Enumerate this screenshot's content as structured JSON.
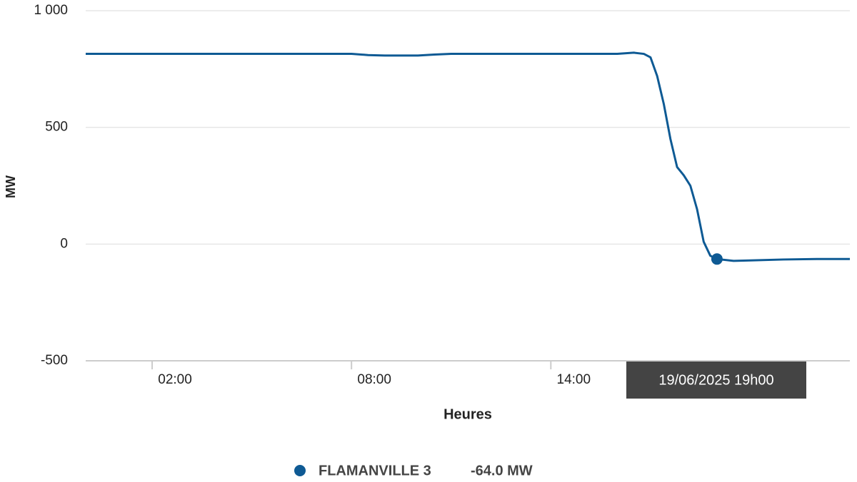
{
  "chart_data": {
    "type": "line",
    "y_label": "MW",
    "x_label": "Heures",
    "x": [
      0,
      1,
      2,
      3,
      4,
      5,
      6,
      7,
      8,
      8.5,
      9,
      10,
      10.5,
      11,
      12,
      13,
      14,
      15,
      16,
      16.5,
      16.8,
      17,
      17.2,
      17.4,
      17.6,
      17.8,
      18,
      18.2,
      18.4,
      18.6,
      18.8,
      19,
      19.5,
      20,
      21,
      22,
      23
    ],
    "series": [
      {
        "name": "FLAMANVILLE 3",
        "color": "#0e5a94",
        "values": [
          815,
          815,
          815,
          815,
          815,
          815,
          815,
          815,
          815,
          810,
          808,
          808,
          812,
          815,
          815,
          815,
          815,
          815,
          815,
          820,
          815,
          800,
          720,
          600,
          450,
          330,
          295,
          250,
          150,
          10,
          -50,
          -64,
          -72,
          -70,
          -66,
          -64,
          -64
        ]
      }
    ],
    "xlim": [
      0,
      23
    ],
    "xticks": [
      {
        "value": 2,
        "label": "02:00"
      },
      {
        "value": 8,
        "label": "08:00"
      },
      {
        "value": 14,
        "label": "14:00"
      }
    ],
    "ylim": [
      -500,
      1000
    ],
    "yticks": [
      -500,
      0,
      500,
      {
        "value": 1000,
        "label": "1 000"
      }
    ],
    "grid": true,
    "highlight": {
      "x": 19,
      "value": -64,
      "date": "19/06/2025 19h00",
      "value_label": "-64.0 MW"
    }
  }
}
